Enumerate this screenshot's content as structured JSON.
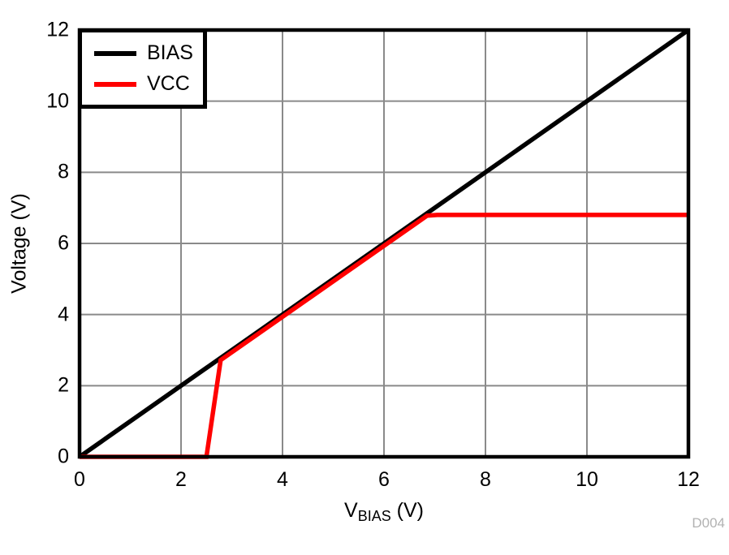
{
  "watermark": "D004",
  "colors": {
    "background": "#ffffff",
    "grid": "#8a8a8a",
    "axis": "#000000",
    "text": "#000000",
    "watermark": "#b2b2b2"
  },
  "chart_data": {
    "type": "line",
    "title": "",
    "xlabel": {
      "base": "V",
      "sub": "BIAS",
      "suffix": " (V)"
    },
    "ylabel": "Voltage (V)",
    "xlim": [
      0,
      12
    ],
    "ylim": [
      0,
      12
    ],
    "xticks": [
      0,
      2,
      4,
      6,
      8,
      10,
      12
    ],
    "yticks": [
      0,
      2,
      4,
      6,
      8,
      10,
      12
    ],
    "grid": true,
    "legend_position": "top-left",
    "series": [
      {
        "name": "BIAS",
        "color": "#000000",
        "points": [
          [
            0,
            0
          ],
          [
            12,
            12
          ]
        ]
      },
      {
        "name": "VCC",
        "color": "#ff0000",
        "points": [
          [
            0,
            0
          ],
          [
            2.5,
            0
          ],
          [
            2.78,
            2.72
          ],
          [
            6.85,
            6.78
          ],
          [
            7.05,
            6.8
          ],
          [
            12,
            6.8
          ]
        ]
      }
    ]
  }
}
